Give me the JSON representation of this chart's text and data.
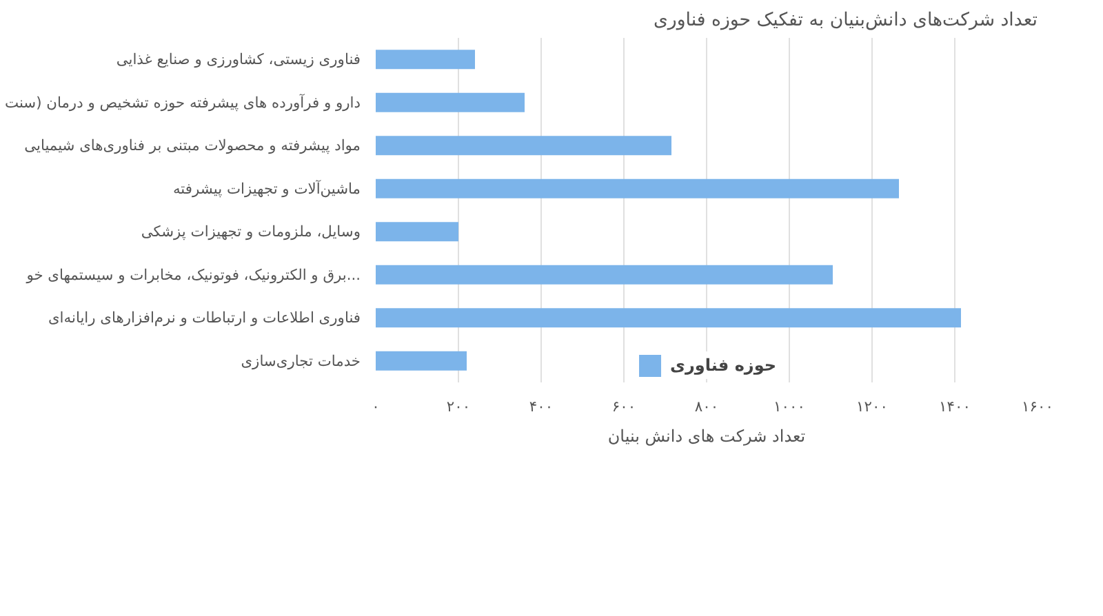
{
  "chart_data": {
    "type": "bar",
    "orientation": "horizontal",
    "title": "تعداد شرکت‌های دانش‌بنیان به تفکیک حوزه فناوری",
    "categories": [
      "فناوری زیستی، کشاورزی و صنایع غذایی",
      "دارو و فرآورده های پیشرفته حوزه تشخیص و درمان (سنت",
      "مواد پیشرفته و محصولات مبتنی بر فناوری‌های شیمیایی",
      "ماشین‌آلات و تجهیزات پیشرفته",
      "وسایل، ملزومات و تجهیزات پزشکی",
      "برق و الکترونیک، فوتونیک، مخابرات و سیستمهای خو...",
      "فناوری اطلاعات و ارتباطات و نرم‌افزارهای رایانه‌ای",
      "خدمات تجاری‌سازی"
    ],
    "series": [
      {
        "name": "حوزه فناوری",
        "color": "#7cb4ea",
        "values": [
          240,
          360,
          715,
          1265,
          200,
          1105,
          1415,
          220
        ]
      }
    ],
    "xlabel": "تعداد شرکت های دانش بنیان",
    "xlim": [
      0,
      1600
    ],
    "xticks": [
      {
        "value": 0,
        "label": "۰"
      },
      {
        "value": 200,
        "label": "۲۰۰"
      },
      {
        "value": 400,
        "label": "۴۰۰"
      },
      {
        "value": 600,
        "label": "۶۰۰"
      },
      {
        "value": 800,
        "label": "۸۰۰"
      },
      {
        "value": 1000,
        "label": "۱۰۰۰"
      },
      {
        "value": 1200,
        "label": "۱۲۰۰"
      },
      {
        "value": 1400,
        "label": "۱۴۰۰"
      },
      {
        "value": 1600,
        "label": "۱۶۰۰"
      }
    ],
    "grid": "x",
    "legend": "bottom"
  }
}
